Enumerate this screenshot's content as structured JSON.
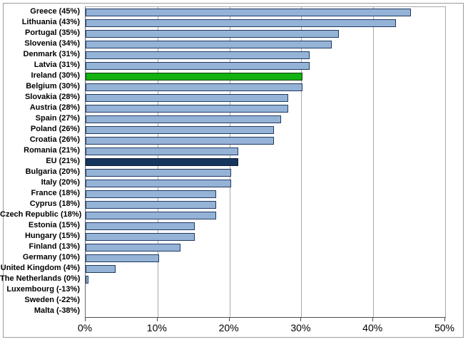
{
  "chart_data": {
    "type": "bar",
    "orientation": "horizontal",
    "title": "",
    "xlabel": "",
    "ylabel": "",
    "xlim": [
      0,
      50
    ],
    "grid": "vertical-10pct",
    "legend": "none",
    "categories": [
      "Greece",
      "Lithuania",
      "Portugal",
      "Slovenia",
      "Denmark",
      "Latvia",
      "Ireland",
      "Belgium",
      "Slovakia",
      "Austria",
      "Spain",
      "Poland",
      "Croatia",
      "Romania",
      "EU",
      "Bulgaria",
      "Italy",
      "France",
      "Cyprus",
      "Czech Republic",
      "Estonia",
      "Hungary",
      "Finland",
      "Germany",
      "United Kingdom",
      "The Netherlands",
      "Luxembourg",
      "Sweden",
      "Malta"
    ],
    "values": [
      45,
      43,
      35,
      34,
      31,
      31,
      30,
      30,
      28,
      28,
      27,
      26,
      26,
      21,
      21,
      20,
      20,
      18,
      18,
      18,
      15,
      15,
      13,
      10,
      4,
      0,
      -13,
      -22,
      -38
    ],
    "highlights": {
      "Ireland": "green",
      "EU": "dark-navy"
    },
    "x_tick_labels": [
      "0%",
      "10%",
      "20%",
      "30%",
      "40%",
      "50%"
    ]
  },
  "rows": [
    {
      "label": "Greece  (45%)",
      "value": 45,
      "style": "default"
    },
    {
      "label": "Lithuania  (43%)",
      "value": 43,
      "style": "default"
    },
    {
      "label": "Portugal  (35%)",
      "value": 35,
      "style": "default"
    },
    {
      "label": "Slovenia  (34%)",
      "value": 34,
      "style": "default"
    },
    {
      "label": "Denmark  (31%)",
      "value": 31,
      "style": "default"
    },
    {
      "label": "Latvia  (31%)",
      "value": 31,
      "style": "default"
    },
    {
      "label": "Ireland  (30%)",
      "value": 30,
      "style": "green"
    },
    {
      "label": "Belgium  (30%)",
      "value": 30,
      "style": "default"
    },
    {
      "label": "Slovakia  (28%)",
      "value": 28,
      "style": "default"
    },
    {
      "label": "Austria  (28%)",
      "value": 28,
      "style": "default"
    },
    {
      "label": "Spain  (27%)",
      "value": 27,
      "style": "default"
    },
    {
      "label": "Poland  (26%)",
      "value": 26,
      "style": "default"
    },
    {
      "label": "Croatia  (26%)",
      "value": 26,
      "style": "default"
    },
    {
      "label": "Romania  (21%)",
      "value": 21,
      "style": "default"
    },
    {
      "label": "EU  (21%)",
      "value": 21,
      "style": "navy"
    },
    {
      "label": "Bulgaria  (20%)",
      "value": 20,
      "style": "default"
    },
    {
      "label": "Italy  (20%)",
      "value": 20,
      "style": "default"
    },
    {
      "label": "France  (18%)",
      "value": 18,
      "style": "default"
    },
    {
      "label": "Cyprus  (18%)",
      "value": 18,
      "style": "default"
    },
    {
      "label": "Czech Republic  (18%)",
      "value": 18,
      "style": "default"
    },
    {
      "label": "Estonia  (15%)",
      "value": 15,
      "style": "default"
    },
    {
      "label": "Hungary  (15%)",
      "value": 15,
      "style": "default"
    },
    {
      "label": "Finland  (13%)",
      "value": 13,
      "style": "default"
    },
    {
      "label": "Germany  (10%)",
      "value": 10,
      "style": "default"
    },
    {
      "label": "United Kingdom  (4%)",
      "value": 4,
      "style": "default"
    },
    {
      "label": "The Netherlands  (0%)",
      "value": 0,
      "style": "default"
    },
    {
      "label": "Luxembourg  (-13%)",
      "value": -13,
      "style": "default"
    },
    {
      "label": "Sweden  (-22%)",
      "value": -22,
      "style": "default"
    },
    {
      "label": "Malta  (-38%)",
      "value": -38,
      "style": "default"
    }
  ],
  "x_axis": {
    "ticks": [
      {
        "label": "0%",
        "value": 0
      },
      {
        "label": "10%",
        "value": 10
      },
      {
        "label": "20%",
        "value": 20
      },
      {
        "label": "30%",
        "value": 30
      },
      {
        "label": "40%",
        "value": 40
      },
      {
        "label": "50%",
        "value": 50
      }
    ],
    "max": 50
  },
  "colors": {
    "default_fill": "#95b3d7",
    "default_border": "#1f3a61",
    "green_fill": "#12b212",
    "green_border": "#0c400c",
    "navy_fill": "#17365d",
    "navy_border": "#0d1f3c",
    "gridline": "#a9a9a9",
    "axis": "#4d4d4d",
    "frame": "#9c9c9c"
  }
}
